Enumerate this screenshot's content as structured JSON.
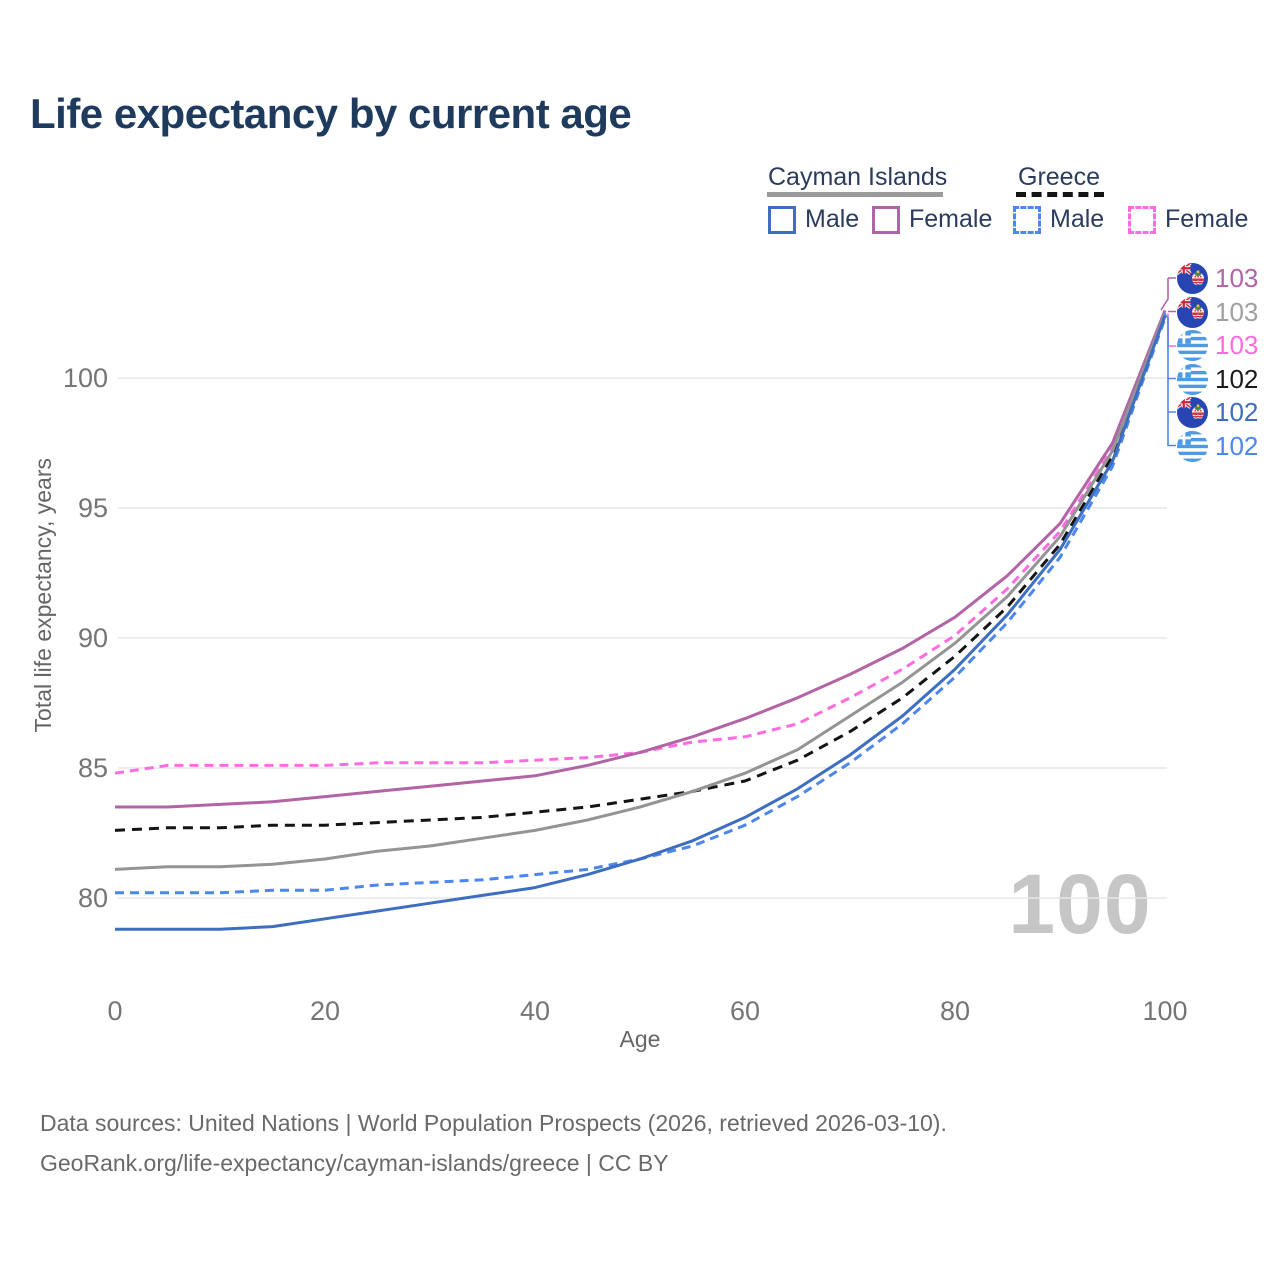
{
  "title": "Life expectancy by current age",
  "legend": {
    "groups": [
      {
        "label": "Cayman Islands",
        "line_style": "solid",
        "underline_color": "#9a9a9a"
      },
      {
        "label": "Greece",
        "line_style": "dashed",
        "underline_color": "#141414"
      }
    ],
    "items": [
      {
        "label": "Male",
        "color": "#3d6ebf",
        "dashed": false
      },
      {
        "label": "Female",
        "color": "#b264a5",
        "dashed": false
      },
      {
        "label": "Male",
        "color": "#4b87ee",
        "dashed": true
      },
      {
        "label": "Female",
        "color": "#ff6ce0",
        "dashed": true
      }
    ]
  },
  "chart_data": {
    "type": "line",
    "title": "Life expectancy by current age",
    "xlabel": "Age",
    "ylabel": "Total life expectancy, years",
    "xlim": [
      0,
      100
    ],
    "ylim": [
      78,
      103
    ],
    "x_ticks": [
      0,
      20,
      40,
      60,
      80,
      100
    ],
    "y_ticks": [
      80,
      85,
      90,
      95,
      100
    ],
    "grid": "horizontal",
    "legend_position": "top-right",
    "x": [
      0,
      5,
      10,
      15,
      20,
      25,
      30,
      35,
      40,
      45,
      50,
      55,
      60,
      65,
      70,
      75,
      80,
      85,
      90,
      95,
      100
    ],
    "series": [
      {
        "name": "Greece Female",
        "country": "Greece",
        "sex": "Female",
        "style": "dashed",
        "color": "#ff6ce0",
        "values": [
          84.8,
          85.1,
          85.1,
          85.1,
          85.1,
          85.2,
          85.2,
          85.2,
          85.3,
          85.4,
          85.6,
          86.0,
          86.2,
          86.7,
          87.7,
          88.8,
          90.1,
          91.9,
          94.1,
          97.3,
          102.5
        ]
      },
      {
        "name": "Cayman Islands Female",
        "country": "Cayman Islands",
        "sex": "Female",
        "style": "solid",
        "color": "#b264a5",
        "values": [
          83.5,
          83.5,
          83.6,
          83.7,
          83.9,
          84.1,
          84.3,
          84.5,
          84.7,
          85.1,
          85.6,
          86.2,
          86.9,
          87.7,
          88.6,
          89.6,
          90.8,
          92.4,
          94.4,
          97.5,
          102.6
        ]
      },
      {
        "name": "Greece Total",
        "country": "Greece",
        "sex": "Both",
        "style": "dashed",
        "color": "#141414",
        "values": [
          82.6,
          82.7,
          82.7,
          82.8,
          82.8,
          82.9,
          83.0,
          83.1,
          83.3,
          83.5,
          83.8,
          84.1,
          84.5,
          85.3,
          86.4,
          87.7,
          89.3,
          91.2,
          93.6,
          97.0,
          102.4
        ]
      },
      {
        "name": "Cayman Islands Total",
        "country": "Cayman Islands",
        "sex": "Both",
        "style": "solid",
        "color": "#949494",
        "values": [
          81.1,
          81.2,
          81.2,
          81.3,
          81.5,
          81.8,
          82.0,
          82.3,
          82.6,
          83.0,
          83.5,
          84.1,
          84.8,
          85.7,
          87.0,
          88.3,
          89.8,
          91.6,
          93.9,
          97.2,
          102.5
        ]
      },
      {
        "name": "Greece Male",
        "country": "Greece",
        "sex": "Male",
        "style": "dashed",
        "color": "#4b87ee",
        "values": [
          80.2,
          80.2,
          80.2,
          80.3,
          80.3,
          80.5,
          80.6,
          80.7,
          80.9,
          81.1,
          81.5,
          82.0,
          82.8,
          83.9,
          85.2,
          86.7,
          88.5,
          90.6,
          93.1,
          96.6,
          102.3
        ]
      },
      {
        "name": "Cayman Islands Male",
        "country": "Cayman Islands",
        "sex": "Male",
        "style": "solid",
        "color": "#3d6ebf",
        "values": [
          78.8,
          78.8,
          78.8,
          78.9,
          79.2,
          79.5,
          79.8,
          80.1,
          80.4,
          80.9,
          81.5,
          82.2,
          83.1,
          84.2,
          85.5,
          87.0,
          88.8,
          90.9,
          93.4,
          96.8,
          102.4
        ]
      }
    ]
  },
  "end_labels": [
    {
      "flag": "cayman",
      "value": "103",
      "color": "#b264a5"
    },
    {
      "flag": "cayman",
      "value": "103",
      "color": "#a0a0a0"
    },
    {
      "flag": "greece",
      "value": "103",
      "color": "#ff6ce0"
    },
    {
      "flag": "greece",
      "value": "102",
      "color": "#1c1c1c"
    },
    {
      "flag": "cayman",
      "value": "102",
      "color": "#3d6ebf"
    },
    {
      "flag": "greece",
      "value": "102",
      "color": "#4b87ee"
    }
  ],
  "watermark": "100",
  "footer": {
    "line1": "Data sources: United Nations | World Population Prospects (2026, retrieved 2026-03-10).",
    "line2": "GeoRank.org/life-expectancy/cayman-islands/greece | CC BY"
  },
  "colors": {
    "grid": "#e7e7e7",
    "tick_text": "#757575",
    "title_text": "#1e3a5c",
    "watermark": "#c6c6c6"
  }
}
